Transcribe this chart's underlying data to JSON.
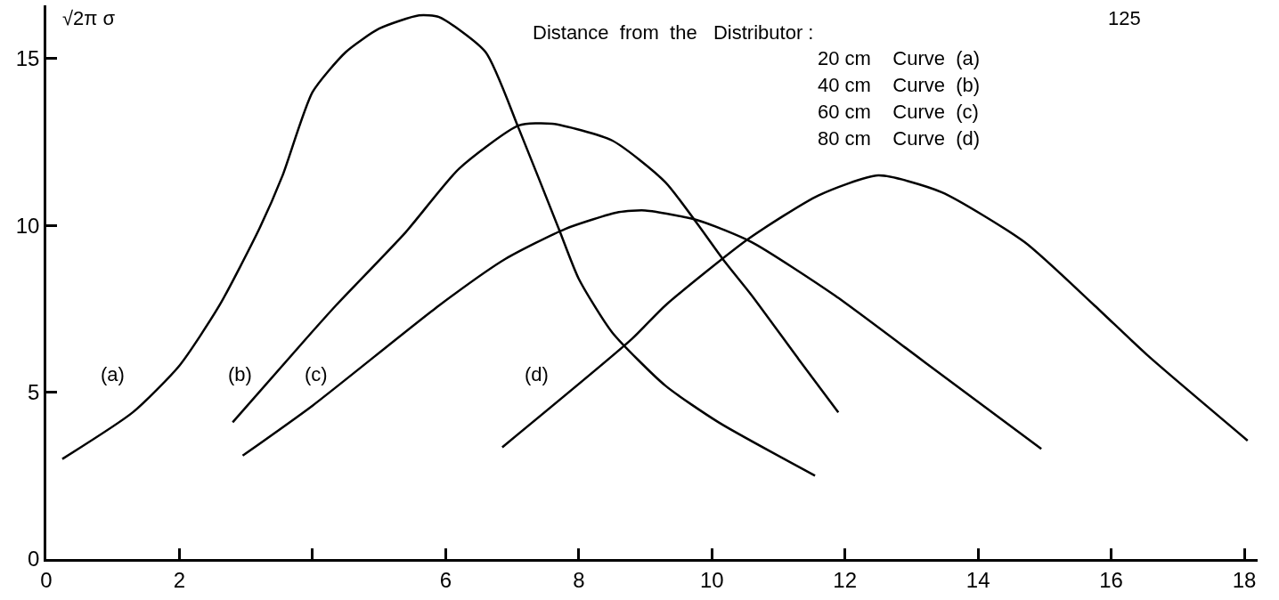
{
  "chart_data": {
    "type": "line",
    "ylabel": "√2π σ",
    "xlim": [
      0,
      18.2
    ],
    "ylim": [
      0,
      16.6
    ],
    "xticks": [
      0,
      2,
      {
        "value": 4,
        "label": null
      },
      6,
      8,
      10,
      12,
      14,
      16,
      18
    ],
    "yticks": [
      0,
      5,
      10,
      15
    ],
    "marker": "none",
    "line_style": "solid",
    "series": [
      {
        "color": "#000000",
        "x": [
          0.24,
          1.3,
          2.0,
          2.6,
          3.2,
          3.55,
          4.0,
          4.5,
          5.0,
          5.6,
          5.9,
          6.6,
          7.1,
          7.7,
          8.0,
          8.5,
          9.3,
          10.1,
          11.55
        ],
        "values": [
          3.0,
          4.4,
          5.8,
          7.6,
          9.9,
          11.5,
          14.0,
          15.2,
          15.9,
          16.3,
          16.25,
          15.2,
          12.9,
          9.9,
          8.4,
          6.8,
          5.2,
          4.1,
          2.5
        ]
      },
      {
        "color": "#000000",
        "x": [
          2.8,
          3.9,
          4.35,
          5.4,
          6.2,
          7.1,
          7.6,
          8.5,
          9.3,
          10.2,
          10.6,
          11.3,
          11.9
        ],
        "values": [
          4.1,
          6.6,
          7.6,
          9.8,
          11.7,
          13.0,
          13.05,
          12.55,
          11.3,
          8.9,
          7.9,
          6.0,
          4.4
        ]
      },
      {
        "color": "#000000",
        "x": [
          2.95,
          4.0,
          5.9,
          6.9,
          7.8,
          8.6,
          9.0,
          9.8,
          10.6,
          11.85,
          13.2,
          14.95
        ],
        "values": [
          3.1,
          4.6,
          7.6,
          9.0,
          9.9,
          10.4,
          10.45,
          10.15,
          9.5,
          7.9,
          5.9,
          3.3
        ]
      },
      {
        "color": "#000000",
        "x": [
          6.85,
          8.8,
          9.3,
          10.55,
          11.6,
          12.5,
          13.45,
          14.7,
          15.75,
          16.55,
          18.05
        ],
        "values": [
          3.35,
          6.6,
          7.6,
          9.6,
          10.9,
          11.5,
          11.0,
          9.5,
          7.6,
          6.1,
          3.55
        ]
      }
    ],
    "annotations": [
      "125",
      "Distance  from  the   Distributor :",
      "20 cm    Curve  (a)",
      "40 cm    Curve  (b)",
      "60 cm    Curve  (c)",
      "80 cm    Curve  (d)",
      "(a)",
      "(b)",
      "(c)",
      "(d)"
    ]
  }
}
